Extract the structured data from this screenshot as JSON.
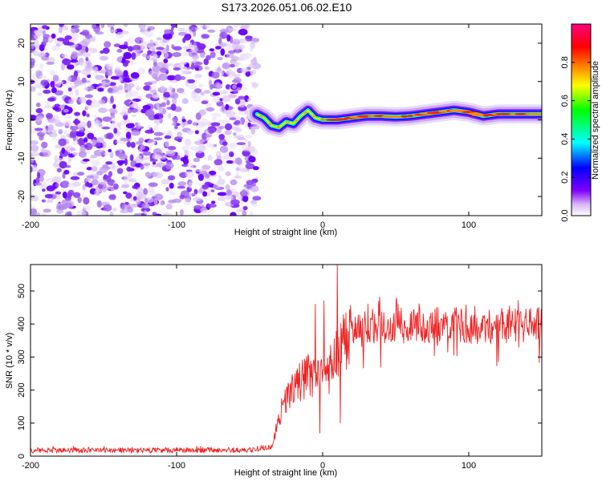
{
  "title": "S173.2026.051.06.02.E10",
  "chart_data": [
    {
      "type": "heatmap",
      "xlabel": "Height of straight line (km)",
      "ylabel": "Frequency (Hz)",
      "xlim": [
        -200,
        150
      ],
      "ylim": [
        -25,
        25
      ],
      "xticks": [
        -200,
        -100,
        0,
        100
      ],
      "xtick_labels": [
        "-200",
        "-100",
        "0",
        "100"
      ],
      "yticks": [
        -20,
        -10,
        0,
        10,
        20
      ],
      "ytick_labels": [
        "-20",
        "-10",
        "0",
        "10",
        "20"
      ],
      "noise_region_x": [
        -200,
        -45
      ],
      "ridge": {
        "x": [
          -45,
          -40,
          -35,
          -30,
          -25,
          -20,
          -15,
          -10,
          -5,
          0,
          10,
          20,
          30,
          40,
          50,
          60,
          70,
          80,
          90,
          100,
          110,
          120,
          130,
          140,
          150
        ],
        "frequency_hz": [
          1.5,
          0.5,
          -1.5,
          -2.0,
          -0.5,
          -1.0,
          1.0,
          2.5,
          0.5,
          0.0,
          0.0,
          0.5,
          1.0,
          1.0,
          0.8,
          1.0,
          1.5,
          2.0,
          2.5,
          2.0,
          1.0,
          1.5,
          1.5,
          1.5,
          1.5
        ]
      },
      "colorbar": {
        "label": "Normalized spectral amplitude",
        "range": [
          0,
          1
        ],
        "ticks": [
          0.0,
          0.2,
          0.4,
          0.6,
          0.8
        ],
        "tick_labels": [
          "0.0",
          "0.2",
          "0.4",
          "0.6",
          "0.8"
        ],
        "colors": [
          "#ffffff",
          "#d8b4f4",
          "#8000ff",
          "#0000ff",
          "#00ffff",
          "#00ff00",
          "#ffff00",
          "#ff8000",
          "#ff0000",
          "#ff0080"
        ]
      }
    },
    {
      "type": "line",
      "xlabel": "Height of straight line (km)",
      "ylabel": "SNR (10 * v/v)",
      "xlim": [
        -200,
        150
      ],
      "ylim": [
        0,
        580
      ],
      "xticks": [
        -200,
        -100,
        0,
        100
      ],
      "xtick_labels": [
        "-200",
        "-100",
        "0",
        "100"
      ],
      "yticks": [
        0,
        100,
        200,
        300,
        400,
        500
      ],
      "ytick_labels": [
        "0",
        "100",
        "200",
        "300",
        "400",
        "500"
      ],
      "color": "#ee2222",
      "trend": {
        "x": [
          -200,
          -100,
          -50,
          -35,
          -30,
          -25,
          -20,
          -15,
          -10,
          -5,
          0,
          5,
          10,
          15,
          20,
          30,
          40,
          60,
          80,
          100,
          120,
          150
        ],
        "y": [
          18,
          18,
          18,
          30,
          120,
          170,
          210,
          230,
          250,
          240,
          230,
          260,
          320,
          350,
          370,
          390,
          395,
          395,
          395,
          395,
          395,
          395
        ]
      },
      "spikes": [
        {
          "x": -5,
          "y": 460
        },
        {
          "x": 1,
          "y": 470
        },
        {
          "x": 10,
          "y": 580
        },
        {
          "x": -2,
          "y": 70
        },
        {
          "x": 12,
          "y": 100
        }
      ]
    }
  ]
}
